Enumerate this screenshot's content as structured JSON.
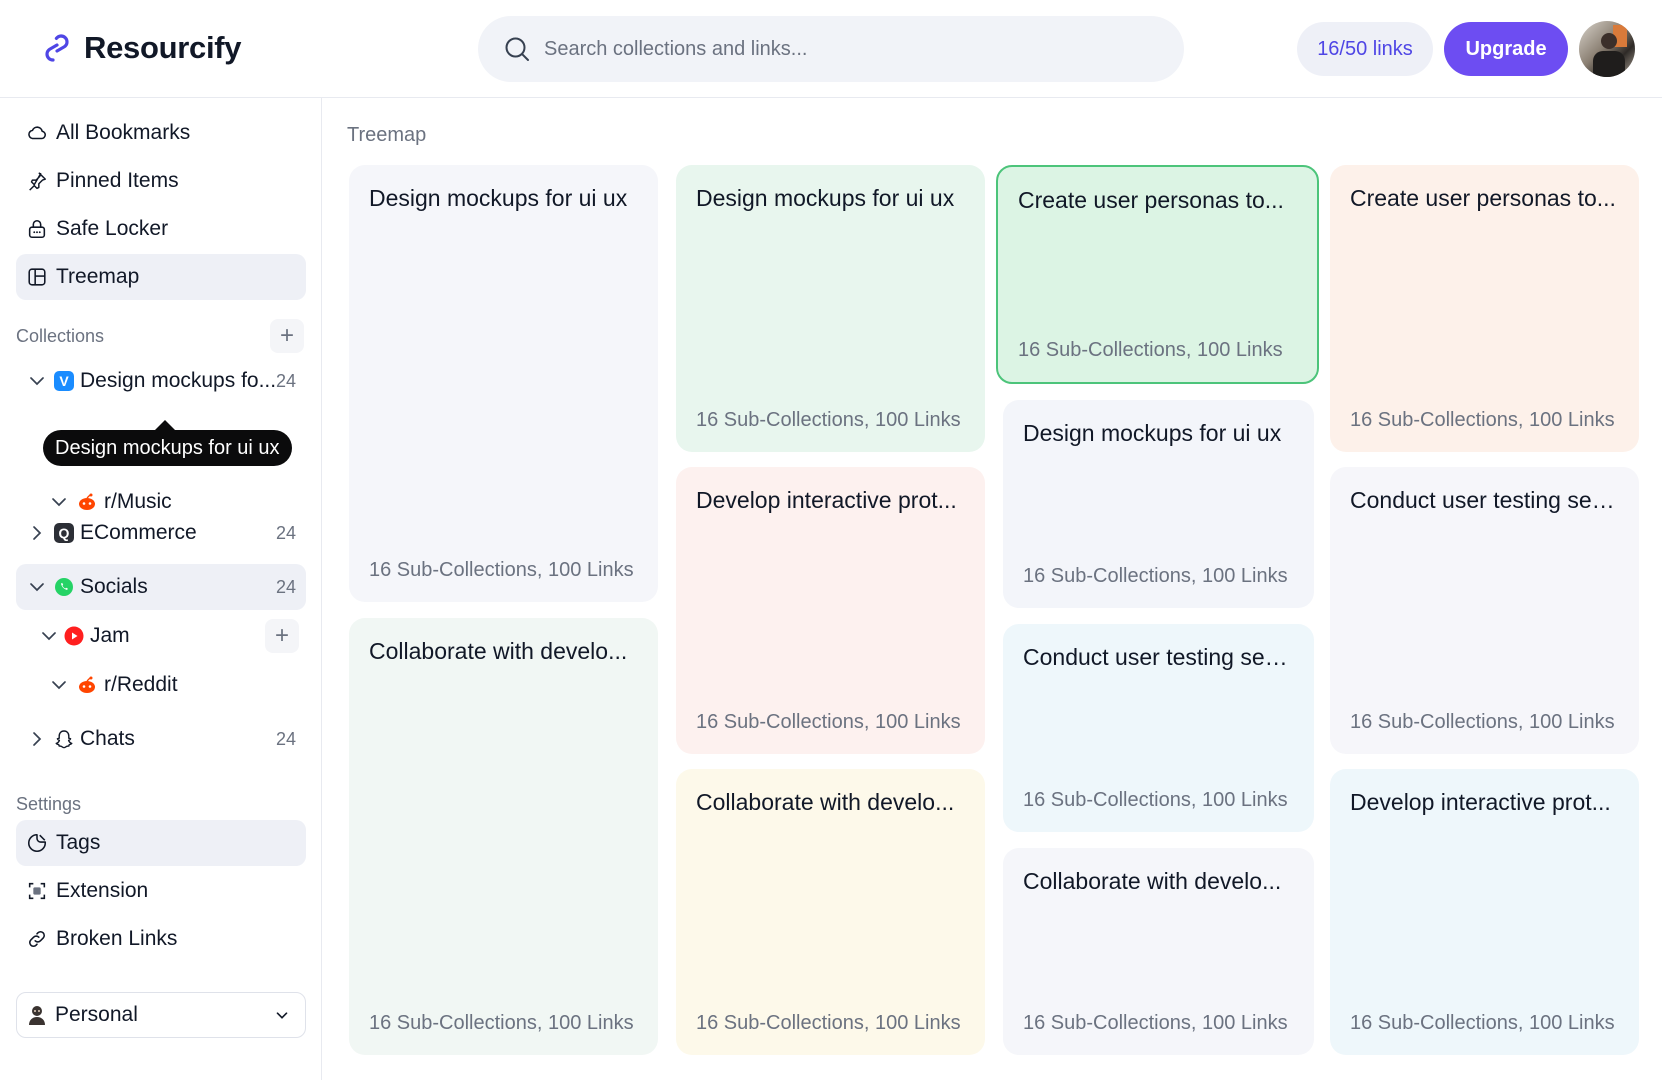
{
  "app": {
    "name": "Resourcify"
  },
  "header": {
    "search_placeholder": "Search collections and links...",
    "links_quota": "16/50 links",
    "upgrade_label": "Upgrade"
  },
  "sidebar": {
    "nav": [
      {
        "label": "All Bookmarks",
        "icon": "cloud-icon"
      },
      {
        "label": "Pinned Items",
        "icon": "pin-icon"
      },
      {
        "label": "Safe Locker",
        "icon": "lock-icon"
      },
      {
        "label": "Treemap",
        "icon": "treemap-icon",
        "active": true
      }
    ],
    "collections_title": "Collections",
    "collections": [
      {
        "label": "Design mockups fo...",
        "count": "24",
        "icon": "vimeo-icon",
        "color": "#1a8cff"
      },
      {
        "label": "r/Music",
        "icon": "reddit-icon"
      },
      {
        "label": "ECommerce",
        "count": "24",
        "icon": "chat-square-icon"
      },
      {
        "label": "Socials",
        "count": "24",
        "icon": "whatsapp-icon"
      },
      {
        "label": "Jam",
        "icon": "youtube-icon"
      },
      {
        "label": "r/Reddit",
        "icon": "reddit-icon"
      },
      {
        "label": "Chats",
        "count": "24",
        "icon": "snapchat-icon"
      }
    ],
    "tooltip": "Design mockups for ui ux",
    "settings_title": "Settings",
    "settings": [
      {
        "label": "Tags",
        "icon": "tag-icon",
        "active": true
      },
      {
        "label": "Extension",
        "icon": "extension-icon"
      },
      {
        "label": "Broken Links",
        "icon": "link-icon"
      }
    ],
    "workspace": "Personal"
  },
  "main": {
    "title": "Treemap",
    "cards": [
      {
        "title": "Design mockups for ui ux",
        "meta": "16 Sub-Collections, 100 Links",
        "color": "#f5f6fa"
      },
      {
        "title": "Collaborate with develo...",
        "meta": "16 Sub-Collections, 100 Links",
        "color": "#f1f7f4"
      },
      {
        "title": "Design mockups for ui ux",
        "meta": "16 Sub-Collections, 100 Links",
        "color": "#e8f6ee"
      },
      {
        "title": "Develop interactive prot...",
        "meta": "16 Sub-Collections, 100 Links",
        "color": "#fdf1ef"
      },
      {
        "title": "Collaborate with develo...",
        "meta": "16 Sub-Collections, 100 Links",
        "color": "#fdf9ea"
      },
      {
        "title": "Create user personas to...",
        "meta": "16 Sub-Collections, 100 Links",
        "color": "#dcf4e4"
      },
      {
        "title": "Design mockups for ui ux",
        "meta": "16 Sub-Collections, 100 Links",
        "color": "#f3f5fa"
      },
      {
        "title": "Conduct user testing ses...",
        "meta": "16 Sub-Collections, 100 Links",
        "color": "#eef7fb"
      },
      {
        "title": "Collaborate with develo...",
        "meta": "16 Sub-Collections, 100 Links",
        "color": "#f5f6fa"
      },
      {
        "title": "Create user personas to...",
        "meta": "16 Sub-Collections, 100 Links",
        "color": "#fdf1ea"
      },
      {
        "title": "Conduct user testing ses...",
        "meta": "16 Sub-Collections, 100 Links",
        "color": "#f6f6fa"
      },
      {
        "title": "Develop interactive prot...",
        "meta": "16 Sub-Collections, 100 Links",
        "color": "#eef7fb"
      }
    ]
  }
}
